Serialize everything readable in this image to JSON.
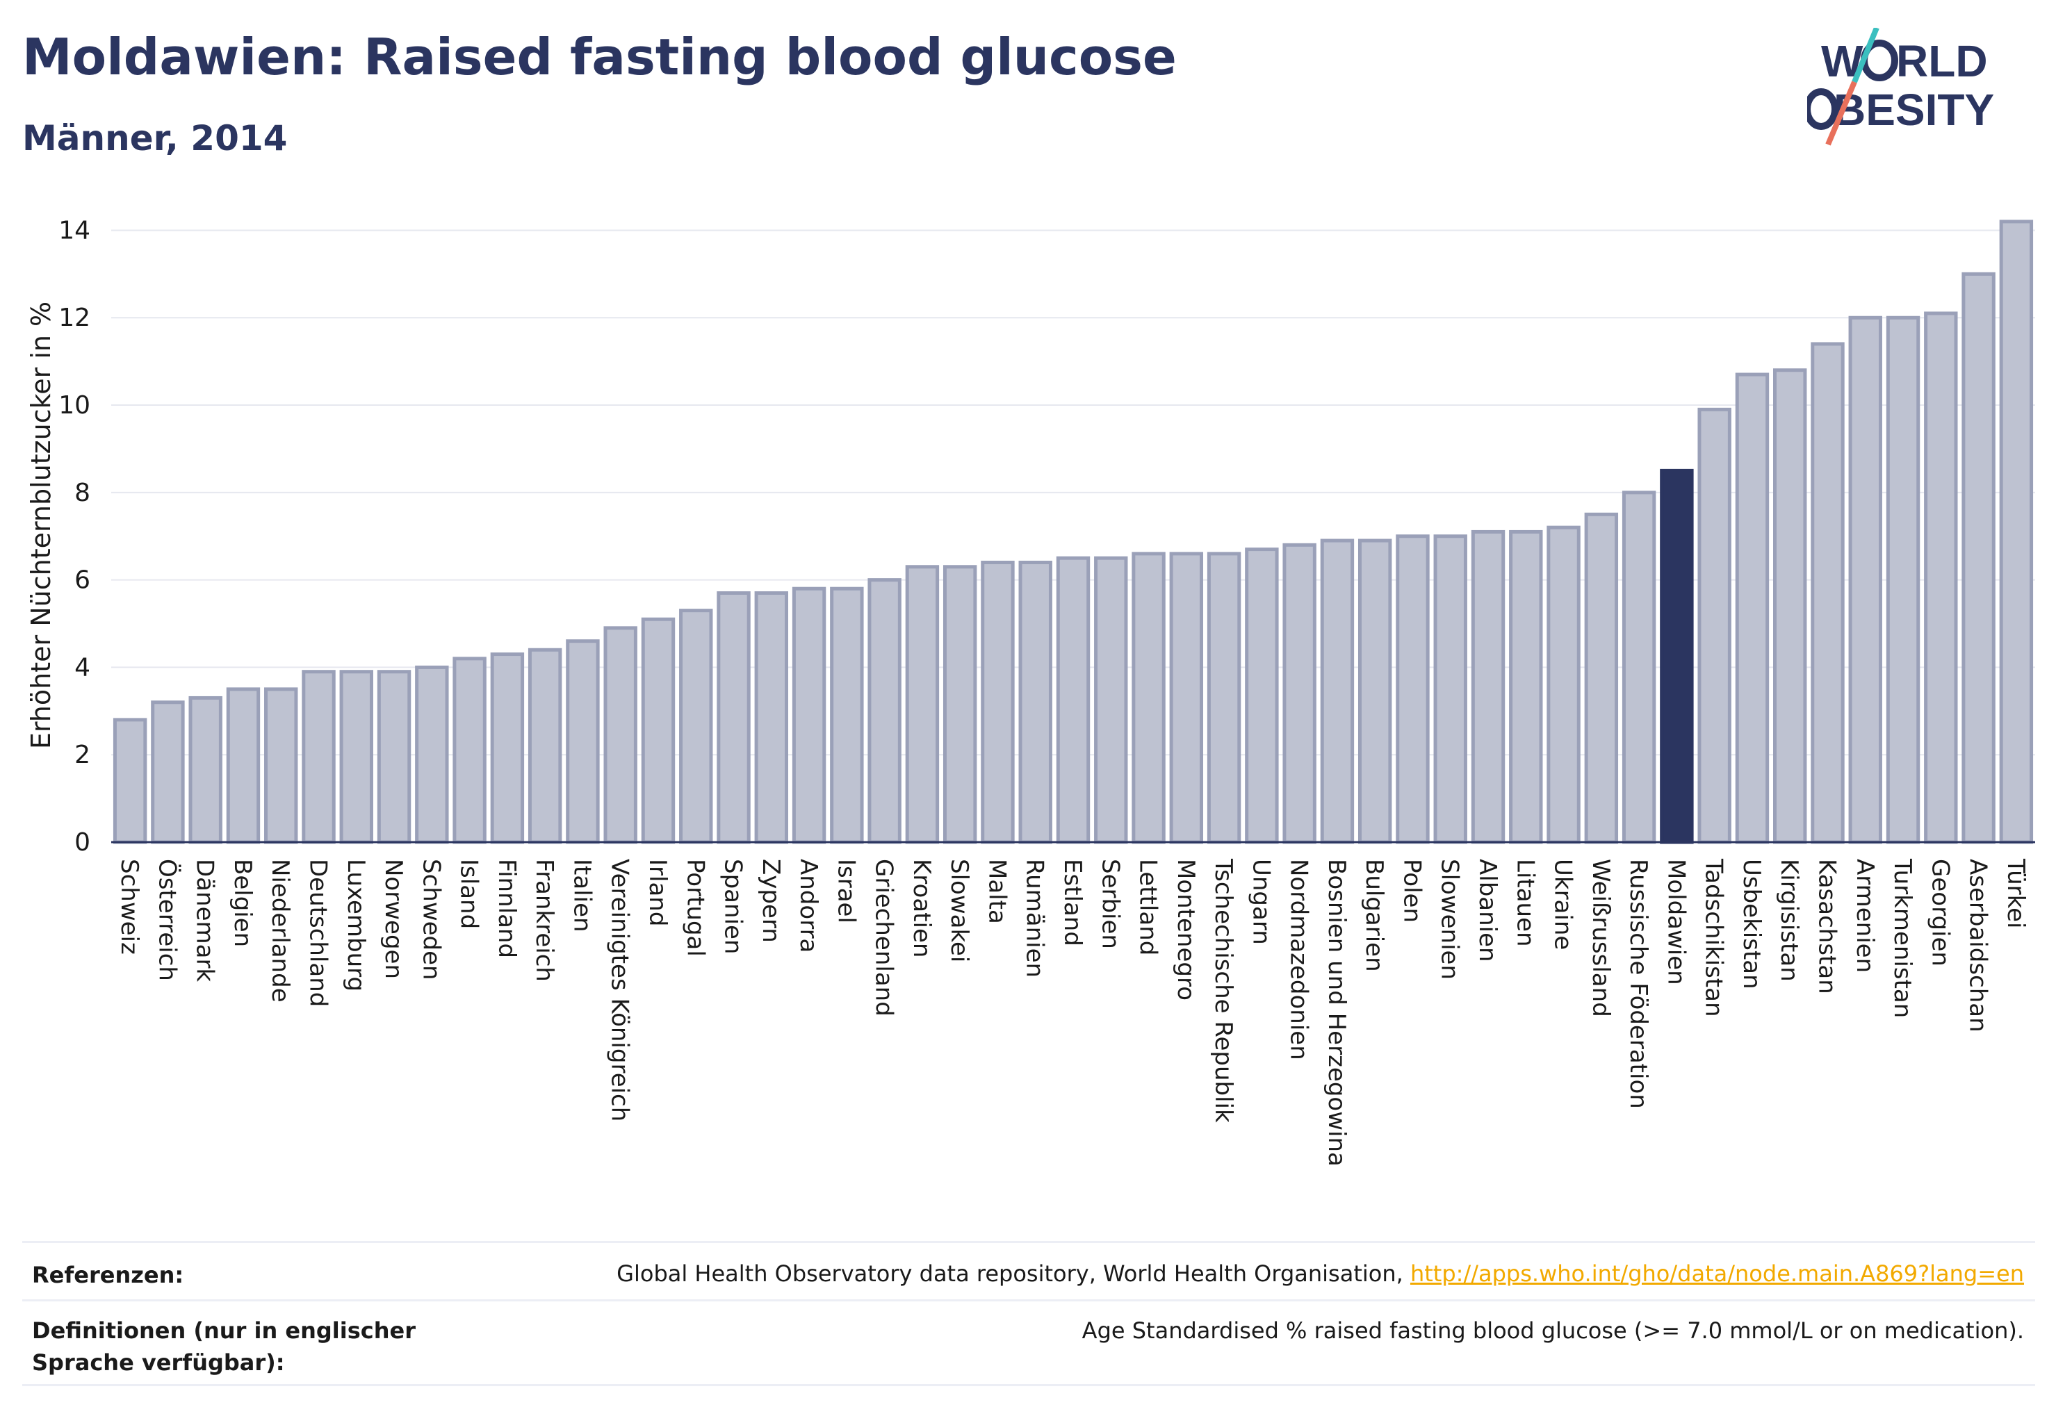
{
  "header": {
    "title": "Moldawien: Raised fasting blood glucose",
    "subtitle": "Männer, 2014"
  },
  "logo": {
    "line1": "WORLD",
    "line2": "OBESITY"
  },
  "chart_data": {
    "type": "bar",
    "ylabel": "Erhöhter Nüchternblutzucker in %",
    "ylim": [
      0,
      14.5
    ],
    "yticks": [
      0,
      2,
      4,
      6,
      8,
      10,
      12,
      14
    ],
    "grid": true,
    "highlight": "Moldawien",
    "colors": {
      "bar": "#bec2d1",
      "bar_border": "#9aa0b8",
      "highlight": "#2b3560"
    },
    "categories": [
      "Schweiz",
      "Österreich",
      "Dänemark",
      "Belgien",
      "Niederlande",
      "Deutschland",
      "Luxemburg",
      "Norwegen",
      "Schweden",
      "Island",
      "Finnland",
      "Frankreich",
      "Italien",
      "Vereinigtes Königreich",
      "Irland",
      "Portugal",
      "Spanien",
      "Zypern",
      "Andorra",
      "Israel",
      "Griechenland",
      "Kroatien",
      "Slowakei",
      "Malta",
      "Rumänien",
      "Estland",
      "Serbien",
      "Lettland",
      "Montenegro",
      "Tschechische Republik",
      "Ungarn",
      "Nordmazedonien",
      "Bosnien und Herzegowina",
      "Bulgarien",
      "Polen",
      "Slowenien",
      "Albanien",
      "Litauen",
      "Ukraine",
      "Weißrussland",
      "Russische Föderation",
      "Moldawien",
      "Tadschikistan",
      "Usbekistan",
      "Kirgisistan",
      "Kasachstan",
      "Armenien",
      "Turkmenistan",
      "Georgien",
      "Aserbaidschan",
      "Türkei"
    ],
    "values": [
      2.8,
      3.2,
      3.3,
      3.5,
      3.5,
      3.9,
      3.9,
      3.9,
      4.0,
      4.2,
      4.3,
      4.4,
      4.6,
      4.9,
      5.1,
      5.3,
      5.7,
      5.7,
      5.8,
      5.8,
      6.0,
      6.3,
      6.3,
      6.4,
      6.4,
      6.5,
      6.5,
      6.6,
      6.6,
      6.6,
      6.7,
      6.8,
      6.9,
      6.9,
      7.0,
      7.0,
      7.1,
      7.1,
      7.2,
      7.5,
      8.0,
      8.5,
      9.9,
      10.7,
      10.8,
      11.4,
      12.0,
      12.0,
      12.1,
      13.0,
      14.2
    ]
  },
  "footer": {
    "ref_label": "Referenzen:",
    "ref_text": "Global Health Observatory data repository, World Health Organisation, ",
    "ref_link": "http://apps.who.int/gho/data/node.main.A869?lang=en",
    "def_label": "Definitionen (nur in englischer Sprache verfügbar):",
    "def_text": "Age Standardised % raised fasting blood glucose (>= 7.0 mmol/L or on medication)."
  }
}
